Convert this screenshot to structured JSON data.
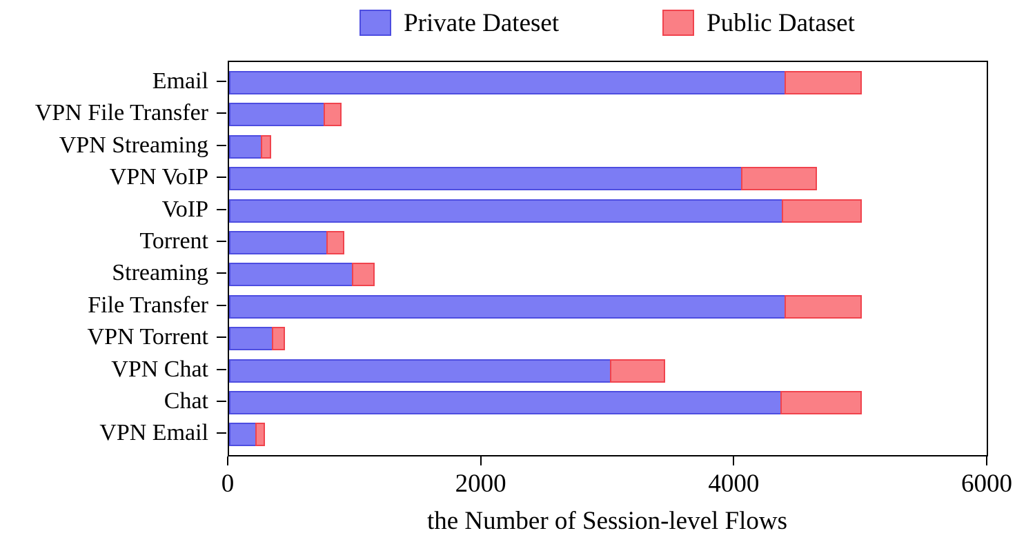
{
  "chart_data": {
    "type": "bar",
    "orientation": "horizontal",
    "stacked": true,
    "title": "",
    "xlabel": "the Number of Session-level Flows",
    "xlim": [
      0,
      6000
    ],
    "xticks": [
      0,
      2000,
      4000,
      6000
    ],
    "xtick_labels": [
      "0",
      "2000",
      "4000",
      "6000"
    ],
    "grid": false,
    "legend_position": "top-center",
    "categories": [
      "Email",
      "VPN File Transfer",
      "VPN Streaming",
      "VPN VoIP",
      "VoIP",
      "Torrent",
      "Streaming",
      "File Transfer",
      "VPN Torrent",
      "VPN Chat",
      "Chat",
      "VPN Email"
    ],
    "series": [
      {
        "name": "Private Dateset",
        "color": "#7c7cf4",
        "border_color": "#4d4de0",
        "values": [
          4400,
          760,
          260,
          4060,
          4380,
          780,
          980,
          4400,
          350,
          3020,
          4370,
          220
        ]
      },
      {
        "name": "Public Dataset",
        "color": "#fa7f85",
        "border_color": "#f0434d",
        "values": [
          600,
          130,
          75,
          590,
          620,
          130,
          170,
          600,
          90,
          430,
          630,
          65
        ]
      }
    ],
    "frame_color": "#000000",
    "background_color": "#ffffff"
  }
}
